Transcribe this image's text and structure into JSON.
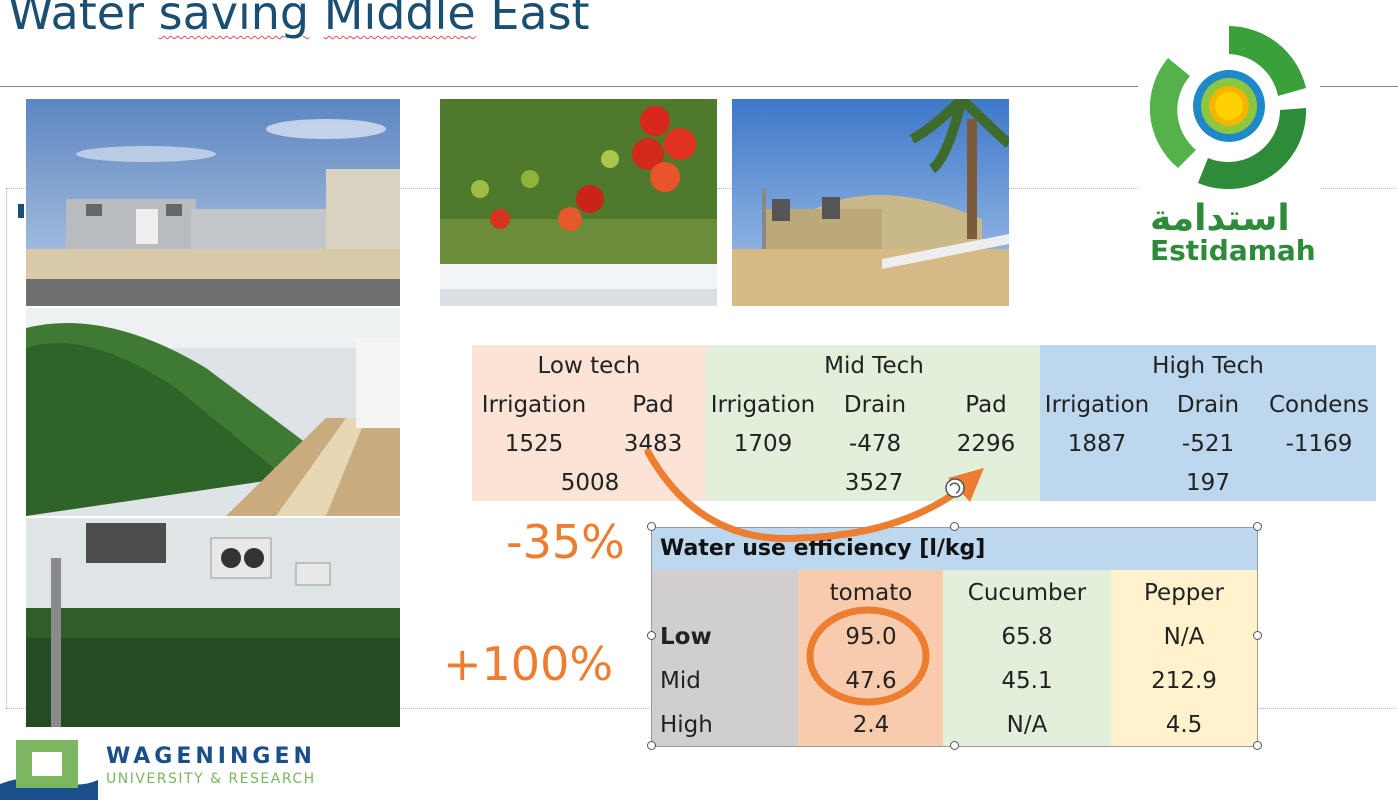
{
  "slide": {
    "title_part1": "Water ",
    "title_part2": "saving",
    "title_part3": " ",
    "title_part4": "Middle",
    "title_part5": " East"
  },
  "energy_table": {
    "groups": [
      "Low tech",
      "Mid Tech",
      "High Tech"
    ],
    "subheaders": [
      "Irrigation",
      "Pad",
      "Irrigation",
      "Drain",
      "Pad",
      "Irrigation",
      "Drain",
      "Condens"
    ],
    "values": [
      "1525",
      "3483",
      "1709",
      "-478",
      "2296",
      "1887",
      "-521",
      "-1169"
    ],
    "totals": [
      "5008",
      "3527",
      "197"
    ],
    "colors": {
      "low": "#fbe3d6",
      "mid": "#e2efda",
      "high": "#bdd7ee"
    }
  },
  "efficiency_table": {
    "title": "Water use efficiency [l/kg]",
    "crops": [
      "tomato",
      "Cucumber",
      "Pepper"
    ],
    "rows": [
      {
        "label": "Low",
        "values": [
          "95.0",
          "65.8",
          "N/A"
        ]
      },
      {
        "label": "Mid",
        "values": [
          "47.6",
          "45.1",
          "212.9"
        ]
      },
      {
        "label": "High",
        "values": [
          "2.4",
          "N/A",
          "4.5"
        ]
      }
    ],
    "colors": {
      "header": "#bdd7ee",
      "label_col": "#d0cece",
      "tomato": "#f8cbad",
      "cucumber": "#e2efda",
      "pepper": "#fff2cc"
    }
  },
  "annotations": {
    "reduction": "-35%",
    "increase": "+100%",
    "accent": "#ed7d31"
  },
  "estidamah": {
    "arabic": "استدامة",
    "english": "Estidamah"
  },
  "wageningen": {
    "name": "WAGENINGEN",
    "subtitle": "UNIVERSITY & RESEARCH"
  }
}
